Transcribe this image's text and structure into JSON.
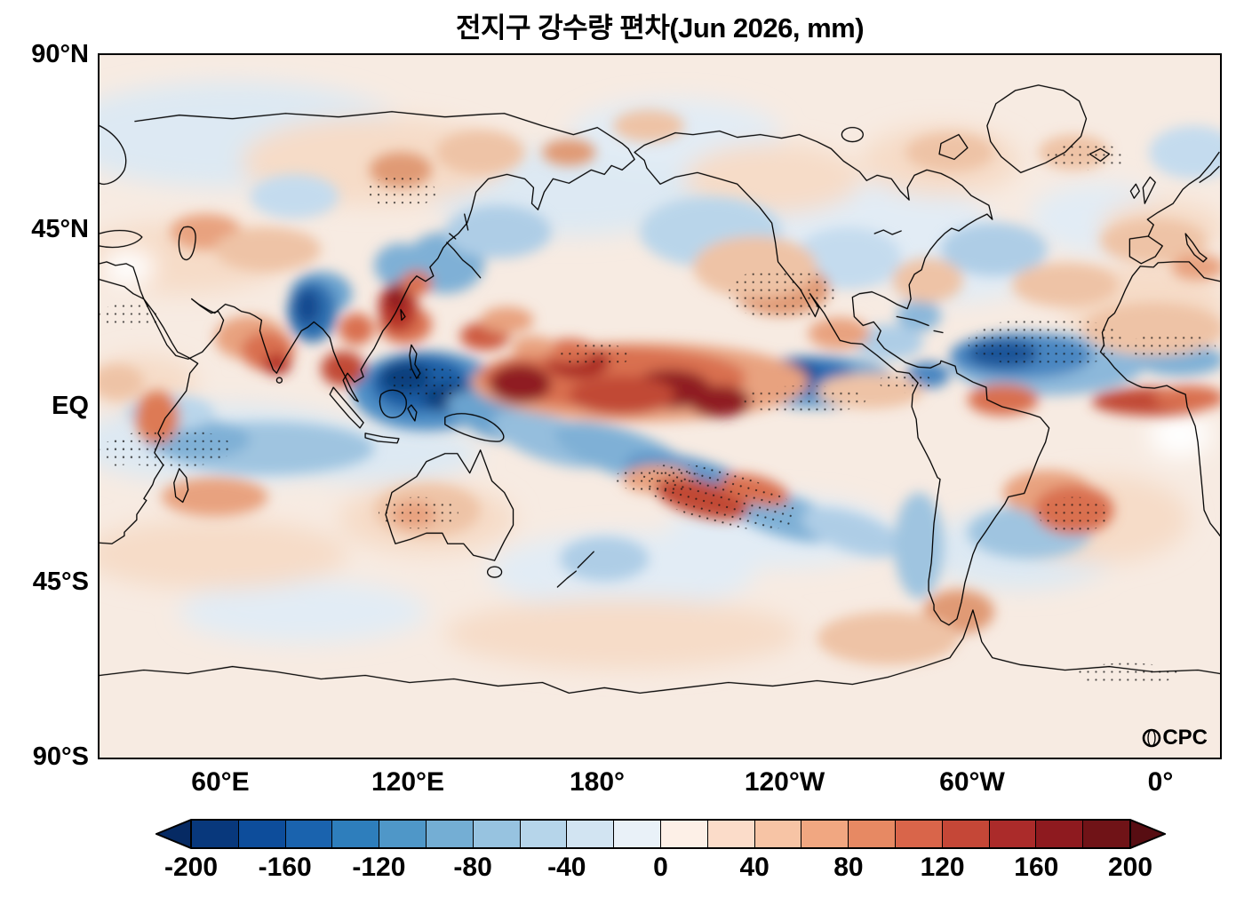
{
  "title": "전지구 강수량 편차(Jun 2026, mm)",
  "map": {
    "yticks": [
      "90°N",
      "45°N",
      "EQ",
      "45°S",
      "90°S"
    ],
    "xticks": [
      "60°E",
      "120°E",
      "180°",
      "120°W",
      "60°W",
      "0°"
    ],
    "logo_text": "CPC"
  },
  "colorbar": {
    "ticks": [
      "-200",
      "-160",
      "-120",
      "-80",
      "-40",
      "0",
      "40",
      "80",
      "120",
      "160",
      "200"
    ],
    "colors": [
      "#08387c",
      "#0d4d9b",
      "#1a63ae",
      "#2e7ebc",
      "#4f97c8",
      "#74aed4",
      "#97c3e0",
      "#b6d5ea",
      "#d2e4f2",
      "#e9f1f8",
      "#fdf0e7",
      "#fbdcc9",
      "#f7c4a5",
      "#f1a781",
      "#e78963",
      "#d9654a",
      "#c54737",
      "#ab2b2a",
      "#8e1a1f",
      "#701317"
    ],
    "left_cap": "#062a63",
    "right_cap": "#570d12"
  },
  "chart_data": {
    "type": "heatmap",
    "title": "전지구 강수량 편차(Jun 2026, mm)",
    "variable": "global precipitation anomaly",
    "period": "Jun 2026",
    "units": "mm",
    "projection": "global cylindrical lat-lon, Pacific-centered (20°E to 380°E)",
    "lat_ticks": [
      "90°N",
      "45°N",
      "EQ",
      "45°S",
      "90°S"
    ],
    "lon_ticks": [
      "60°E",
      "120°E",
      "180°",
      "120°W",
      "60°W",
      "0°"
    ],
    "lat_range": [
      -90,
      90
    ],
    "colorbar_levels": [
      -200,
      -180,
      -160,
      -140,
      -120,
      -100,
      -80,
      -60,
      -40,
      -20,
      0,
      20,
      40,
      60,
      80,
      100,
      120,
      140,
      160,
      180,
      200
    ],
    "colorbar_extends": "both",
    "legend_position": "bottom",
    "grid": false,
    "anomaly_regions": [
      {
        "region": "Maritime Continent / western equatorial Pacific",
        "anomaly_mm": -200
      },
      {
        "region": "Central equatorial Pacific (170°E–140°W)",
        "anomaly_mm": 200
      },
      {
        "region": "Eastern equatorial Pacific (~125°W)",
        "anomaly_mm": -140
      },
      {
        "region": "Tropical North Atlantic ITCZ (55°W–20°W)",
        "anomaly_mm": -120
      },
      {
        "region": "Equatorial Atlantic / Gulf of Guinea",
        "anomaly_mm": 100
      },
      {
        "region": "Northeast India / Bay of Bengal",
        "anomaly_mm": -160
      },
      {
        "region": "Western India / Arabian Sea",
        "anomaly_mm": 120
      },
      {
        "region": "South China / Taiwan vicinity",
        "anomaly_mm": 160
      },
      {
        "region": "Japan / Korea vicinity",
        "anomaly_mm": -60
      },
      {
        "region": "South Pacific convergence zone (diagonal band)",
        "anomaly_mm": -80
      },
      {
        "region": "Subtropical South Pacific (25°S–35°S)",
        "anomaly_mm": 120
      },
      {
        "region": "South Indian Ocean (10°S–20°S)",
        "anomaly_mm": -60
      },
      {
        "region": "East Africa coast / western Indian Ocean",
        "anomaly_mm": 80
      },
      {
        "region": "Southwest Atlantic (~30°S)",
        "anomaly_mm": 100
      },
      {
        "region": "Chile coast / southeast Pacific",
        "anomaly_mm": -60
      },
      {
        "region": "Interior Australia",
        "anomaly_mm": 40
      },
      {
        "region": "Antarctic Peninsula",
        "anomaly_mm": 60
      }
    ],
    "stippled_regions": [
      "northeast Pacific",
      "eastern equatorial Pacific",
      "tropical North Atlantic",
      "South Pacific",
      "Australia",
      "south Indian Ocean",
      "Greenland vicinity",
      "central Asia",
      "Maritime Continent",
      "southwest Atlantic"
    ],
    "stippling_note": "black dots mark stippled (significance) areas",
    "source_logo": "CPC"
  }
}
